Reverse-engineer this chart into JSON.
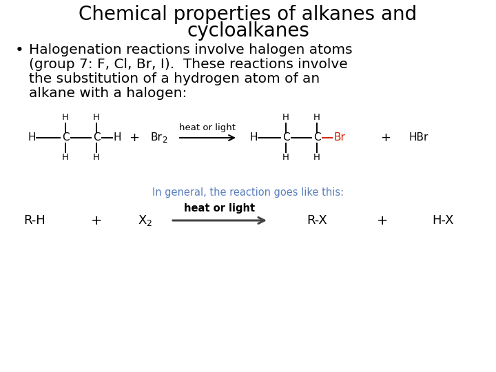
{
  "title_line1": "Chemical properties of alkanes and",
  "title_line2": "cycloalkanes",
  "bullet_text_line1": "Halogenation reactions involve halogen atoms",
  "bullet_text_line2": "(group 7: F, Cl, Br, I).  These reactions involve",
  "bullet_text_line3": "the substitution of a hydrogen atom of an",
  "bullet_text_line4": "alkane with a halogen:",
  "subtitle_note": "In general, the reaction goes like this:",
  "bg_color": "#ffffff",
  "text_color": "#000000",
  "blue_color": "#5b7fbc",
  "red_color": "#cc2200",
  "title_fontsize": 20,
  "body_fontsize": 14.5,
  "small_fontsize": 9.5,
  "chem_fontsize": 11,
  "gen_fontsize": 13
}
